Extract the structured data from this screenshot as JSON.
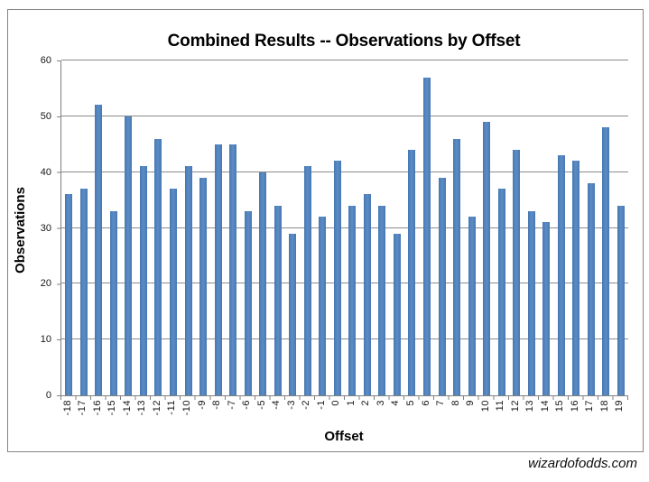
{
  "watermark": "wizardofodds.com",
  "chart_data": {
    "type": "bar",
    "title": "Combined Results -- Observations by Offset",
    "xlabel": "Offset",
    "ylabel": "Observations",
    "categories": [
      "-18",
      "-17",
      "-16",
      "-15",
      "-14",
      "-13",
      "-12",
      "-11",
      "-10",
      "-9",
      "-8",
      "-7",
      "-6",
      "-5",
      "-4",
      "-3",
      "-2",
      "-1",
      "0",
      "1",
      "2",
      "3",
      "4",
      "5",
      "6",
      "7",
      "8",
      "9",
      "10",
      "11",
      "12",
      "13",
      "14",
      "15",
      "16",
      "17",
      "18",
      "19"
    ],
    "values": [
      36,
      37,
      52,
      33,
      50,
      41,
      46,
      37,
      41,
      39,
      45,
      45,
      33,
      40,
      34,
      29,
      41,
      32,
      42,
      34,
      36,
      34,
      29,
      44,
      57,
      39,
      46,
      32,
      49,
      37,
      44,
      33,
      31,
      43,
      42,
      38,
      48,
      34
    ],
    "ylim": [
      0,
      60
    ],
    "yticks": [
      0,
      10,
      20,
      30,
      40,
      50,
      60
    ],
    "grid": true,
    "legend": false,
    "bar_color": "#4f81bd",
    "gridline_color": "#8b8b8b",
    "axis_color": "#808080"
  }
}
